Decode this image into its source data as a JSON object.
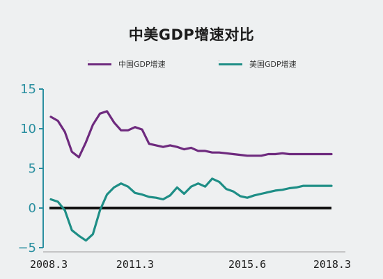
{
  "chart_data": {
    "type": "line",
    "title": "中美GDP增速对比",
    "xlabel": "",
    "ylabel": "",
    "ylim": [
      -5,
      15
    ],
    "yticks": [
      15,
      10,
      5,
      0,
      -5
    ],
    "ytick_labels": [
      "15",
      "10",
      "5",
      "0",
      "−5"
    ],
    "x_labels": [
      "2008.3",
      "2011.3",
      "2015.6",
      "2018.3"
    ],
    "x_label_index": [
      0,
      12,
      28,
      40
    ],
    "legend_position": "top",
    "grid": false,
    "zero_line": true,
    "x": [
      "2008Q1",
      "2008Q2",
      "2008Q3",
      "2008Q4",
      "2009Q1",
      "2009Q2",
      "2009Q3",
      "2009Q4",
      "2010Q1",
      "2010Q2",
      "2010Q3",
      "2010Q4",
      "2011Q1",
      "2011Q2",
      "2011Q3",
      "2011Q4",
      "2012Q1",
      "2012Q2",
      "2012Q3",
      "2012Q4",
      "2013Q1",
      "2013Q2",
      "2013Q3",
      "2013Q4",
      "2014Q1",
      "2014Q2",
      "2014Q3",
      "2014Q4",
      "2015Q1",
      "2015Q2",
      "2015Q3",
      "2015Q4",
      "2016Q1",
      "2016Q2",
      "2016Q3",
      "2016Q4",
      "2017Q1",
      "2017Q2",
      "2017Q3",
      "2017Q4",
      "2018Q1"
    ],
    "series": [
      {
        "name": "中国GDP增速",
        "color": "#6e2a7e",
        "values": [
          11.5,
          11.0,
          9.6,
          7.1,
          6.4,
          8.3,
          10.5,
          11.9,
          12.2,
          10.8,
          9.8,
          9.8,
          10.2,
          9.9,
          8.1,
          7.9,
          7.7,
          7.9,
          7.7,
          7.4,
          7.6,
          7.2,
          7.2,
          7.0,
          7.0,
          6.9,
          6.8,
          6.7,
          6.6,
          6.6,
          6.6,
          6.8,
          6.8,
          6.9,
          6.8,
          6.8,
          6.8,
          6.8,
          6.8,
          6.8,
          6.8
        ]
      },
      {
        "name": "美国GDP增速",
        "color": "#1e8e86",
        "values": [
          1.1,
          0.8,
          -0.3,
          -2.8,
          -3.5,
          -4.1,
          -3.3,
          -0.3,
          1.7,
          2.6,
          3.1,
          2.7,
          1.9,
          1.7,
          1.4,
          1.3,
          1.1,
          1.6,
          2.6,
          1.8,
          2.7,
          3.1,
          2.7,
          3.7,
          3.3,
          2.4,
          2.1,
          1.5,
          1.3,
          1.6,
          1.8,
          2.0,
          2.2,
          2.3,
          2.5,
          2.6,
          2.8,
          2.8,
          2.8,
          2.8,
          2.8
        ]
      }
    ]
  }
}
